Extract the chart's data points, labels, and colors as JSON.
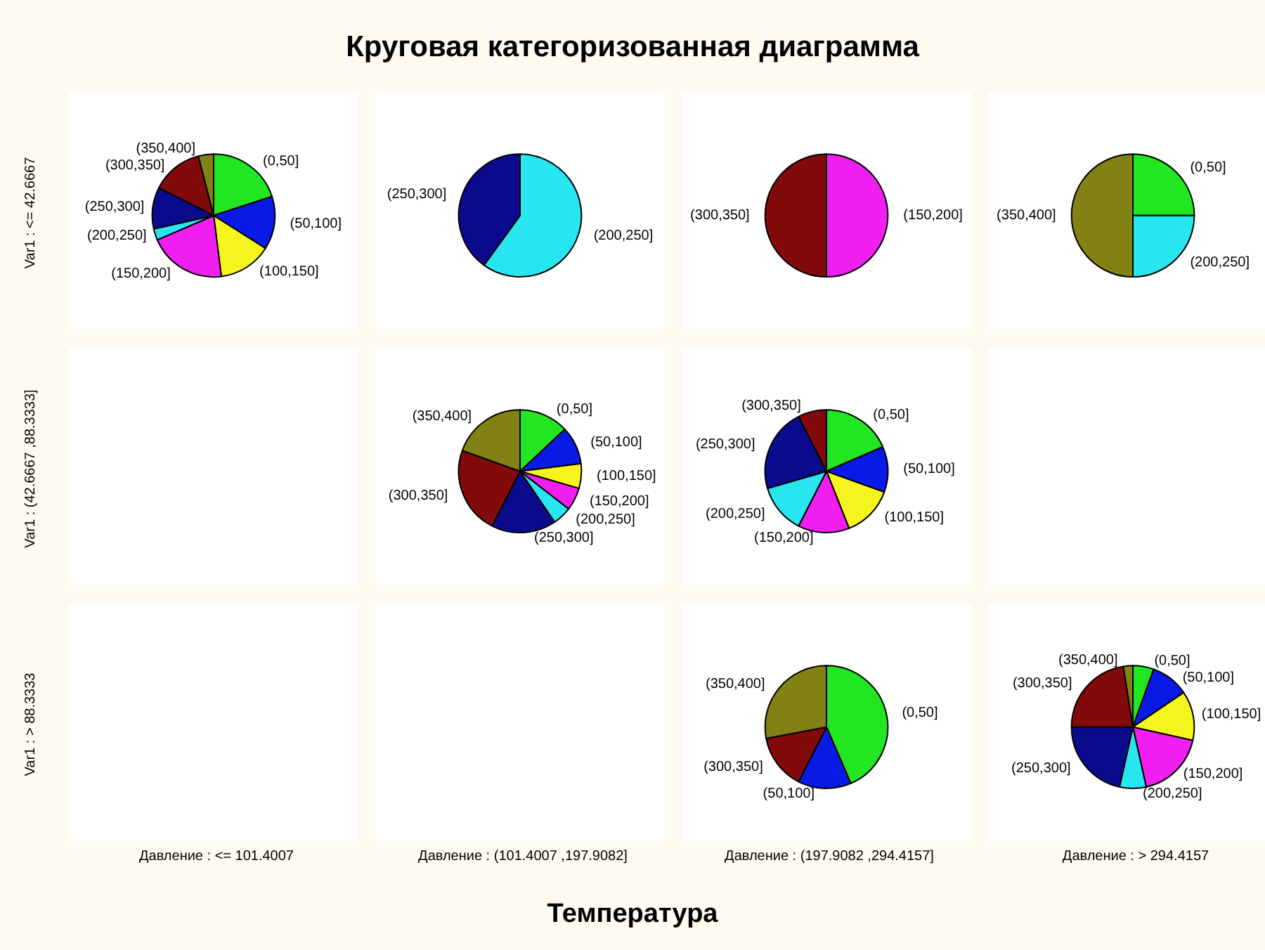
{
  "chart_data": [
    {
      "type": "pie",
      "categories": [
        "(0,50]",
        "(50,100]",
        "(100,150]",
        "(150,200]",
        "(200,250]",
        "(250,300]",
        "(300,350]",
        "(350,400]"
      ],
      "values": [
        20,
        14,
        14,
        20.5,
        3,
        11,
        13.5,
        4
      ],
      "colors": [
        "#22e622",
        "#0a1ae6",
        "#f5f51e",
        "#f01ef0",
        "#28e6f0",
        "#0a0a8c",
        "#820a0a",
        "#828214"
      ]
    },
    {
      "type": "pie",
      "categories": [
        "(200,250]",
        "(250,300]"
      ],
      "values": [
        60,
        40
      ],
      "colors": [
        "#28e6f0",
        "#0a0a8c"
      ]
    },
    {
      "type": "pie",
      "categories": [
        "(150,200]",
        "(300,350]"
      ],
      "values": [
        50,
        50
      ],
      "colors": [
        "#f01ef0",
        "#820a0a"
      ]
    },
    {
      "type": "pie",
      "categories": [
        "(0,50]",
        "(200,250]",
        "(350,400]"
      ],
      "values": [
        25,
        25,
        50
      ],
      "colors": [
        "#22e622",
        "#28e6f0",
        "#828214"
      ]
    },
    {
      "type": "pie",
      "categories": [
        "(0,50]",
        "(50,100]",
        "(100,150]",
        "(150,200]",
        "(200,250]",
        "(250,300]",
        "(300,350]",
        "(350,400]"
      ],
      "values": [
        13,
        10,
        6.5,
        6,
        5,
        17,
        23,
        19.5
      ],
      "colors": [
        "#22e622",
        "#0a1ae6",
        "#f5f51e",
        "#f01ef0",
        "#28e6f0",
        "#0a0a8c",
        "#820a0a",
        "#828214"
      ]
    },
    {
      "type": "pie",
      "categories": [
        "(0,50]",
        "(50,100]",
        "(100,150]",
        "(150,200]",
        "(200,250]",
        "(250,300]",
        "(300,350]"
      ],
      "values": [
        18.5,
        12,
        13.5,
        13.5,
        13,
        22,
        7.5
      ],
      "colors": [
        "#22e622",
        "#0a1ae6",
        "#f5f51e",
        "#f01ef0",
        "#28e6f0",
        "#0a0a8c",
        "#820a0a"
      ]
    },
    {
      "type": "pie",
      "categories": [
        "(0,50]",
        "(50,100]",
        "(300,350]",
        "(350,400]"
      ],
      "values": [
        43.5,
        14,
        14.5,
        28
      ],
      "colors": [
        "#22e622",
        "#0a1ae6",
        "#820a0a",
        "#828214"
      ]
    },
    {
      "type": "pie",
      "categories": [
        "(0,50]",
        "(50,100]",
        "(100,150]",
        "(150,200]",
        "(200,250]",
        "(250,300]",
        "(300,350]",
        "(350,400]"
      ],
      "values": [
        5.5,
        10,
        13,
        18,
        7,
        21.5,
        22.5,
        2.5
      ],
      "colors": [
        "#22e622",
        "#0a1ae6",
        "#f5f51e",
        "#f01ef0",
        "#28e6f0",
        "#0a0a8c",
        "#820a0a",
        "#828214"
      ]
    },
    {
      "type": "other",
      "title": "Круговая категоризованная диаграмма",
      "xlabel": "Температура",
      "categories": [
        "Давление : <= 101.4007",
        "Давление : (101.4007 ,197.9082]",
        "Давление : (197.9082 ,294.4157]",
        "Давление : > 294.4157"
      ],
      "y_categories": [
        "Var1 : <= 42.6667",
        "Var1 : (42.6667 ,88.3333]",
        "Var1 : > 88.3333"
      ]
    }
  ]
}
